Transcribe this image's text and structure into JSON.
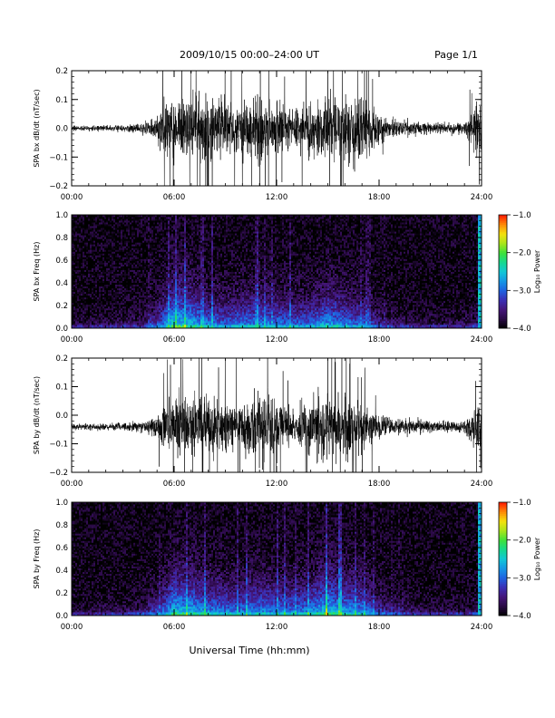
{
  "header": {
    "title": "2009/10/15   00:00–24:00 UT",
    "page": "Page 1/1"
  },
  "footer": {
    "xlabel": "Universal Time (hh:mm)"
  },
  "colors": {
    "trace": "#000000",
    "colormap": [
      "#000000",
      "#2a0a45",
      "#45167a",
      "#3b2fb5",
      "#1f62e0",
      "#1597e6",
      "#11c7d6",
      "#16d98e",
      "#3fe23a",
      "#a9e51b",
      "#f5e20e",
      "#ff8a08",
      "#ff1a00"
    ]
  },
  "chart_data": [
    {
      "type": "line",
      "id": "bx-timeseries",
      "ylabel": "SPA bx dB/dt (nT/sec)",
      "ylim": [
        -0.2,
        0.2
      ],
      "yticks": [
        "0.2",
        "0.1",
        "0.0",
        "−0.1",
        "−0.2"
      ],
      "ytick_values": [
        0.2,
        0.1,
        0.0,
        -0.1,
        -0.2
      ],
      "xlim": [
        0,
        24
      ],
      "xticks": [
        "00:00",
        "06:00",
        "12:00",
        "18:00",
        "24:00"
      ],
      "xtick_values": [
        0,
        6,
        12,
        18,
        24
      ],
      "baseline": 0.0,
      "activity_profile": {
        "hours": [
          0,
          1,
          2,
          3,
          4,
          4.5,
          5,
          5.5,
          6,
          7,
          8,
          9,
          10,
          11,
          12,
          13,
          14,
          15,
          16,
          17,
          18,
          19,
          20,
          21,
          22,
          23,
          23.8,
          24
        ],
        "amplitude": [
          0.015,
          0.015,
          0.018,
          0.02,
          0.028,
          0.04,
          0.09,
          0.18,
          0.2,
          0.18,
          0.19,
          0.17,
          0.16,
          0.2,
          0.19,
          0.12,
          0.17,
          0.2,
          0.19,
          0.18,
          0.09,
          0.05,
          0.04,
          0.035,
          0.03,
          0.035,
          0.16,
          0.2
        ]
      }
    },
    {
      "type": "heatmap",
      "id": "bx-spectrogram",
      "ylabel": "SPA bx Freq (Hz)",
      "ylim": [
        0.0,
        1.0
      ],
      "yticks": [
        "1.0",
        "0.8",
        "0.6",
        "0.4",
        "0.2",
        "0.0"
      ],
      "ytick_values": [
        1.0,
        0.8,
        0.6,
        0.4,
        0.2,
        0.0
      ],
      "xlim": [
        0,
        24
      ],
      "xticks": [
        "00:00",
        "06:00",
        "12:00",
        "18:00",
        "24:00"
      ],
      "xtick_values": [
        0,
        6,
        12,
        18,
        24
      ],
      "colorbar": {
        "label": "Log₁₀ Power",
        "range": [
          -4.0,
          -1.0
        ],
        "ticks": [
          "−1.0",
          "−2.0",
          "−3.0",
          "−4.0"
        ],
        "tick_values": [
          -1.0,
          -2.0,
          -3.0,
          -4.0
        ]
      },
      "power_profile": {
        "hours": [
          0,
          1,
          2,
          3,
          4,
          5,
          5.5,
          6,
          7,
          8,
          9,
          10,
          11,
          12,
          13,
          14,
          15,
          16,
          17,
          18,
          19,
          20,
          21,
          22,
          23,
          24
        ],
        "low_freq_peak_log10": [
          -3.6,
          -3.6,
          -3.5,
          -3.5,
          -3.4,
          -3.0,
          -2.6,
          -2.2,
          -2.4,
          -2.7,
          -2.8,
          -2.7,
          -2.6,
          -2.7,
          -2.8,
          -2.8,
          -2.5,
          -2.7,
          -2.8,
          -3.2,
          -3.4,
          -3.5,
          -3.5,
          -3.5,
          -3.5,
          -3.3
        ]
      }
    },
    {
      "type": "line",
      "id": "by-timeseries",
      "ylabel": "SPA by dB/dt (nT/sec)",
      "ylim": [
        -0.2,
        0.2
      ],
      "yticks": [
        "0.2",
        "0.1",
        "0.0",
        "−0.1",
        "−0.2"
      ],
      "ytick_values": [
        0.2,
        0.1,
        0.0,
        -0.1,
        -0.2
      ],
      "xlim": [
        0,
        24
      ],
      "xticks": [
        "00:00",
        "06:00",
        "12:00",
        "18:00",
        "24:00"
      ],
      "xtick_values": [
        0,
        6,
        12,
        18,
        24
      ],
      "baseline": -0.04,
      "activity_profile": {
        "hours": [
          0,
          1,
          2,
          3,
          4,
          4.5,
          5,
          5.5,
          6,
          7,
          8,
          9,
          10,
          11,
          12,
          13,
          14,
          15,
          16,
          17,
          18,
          19,
          20,
          21,
          22,
          23,
          23.8,
          24
        ],
        "amplitude": [
          0.018,
          0.018,
          0.02,
          0.022,
          0.03,
          0.04,
          0.07,
          0.14,
          0.2,
          0.17,
          0.18,
          0.17,
          0.15,
          0.2,
          0.17,
          0.1,
          0.16,
          0.2,
          0.18,
          0.15,
          0.07,
          0.045,
          0.04,
          0.035,
          0.03,
          0.035,
          0.16,
          0.2
        ]
      }
    },
    {
      "type": "heatmap",
      "id": "by-spectrogram",
      "ylabel": "SPA by Freq (Hz)",
      "ylim": [
        0.0,
        1.0
      ],
      "yticks": [
        "1.0",
        "0.8",
        "0.6",
        "0.4",
        "0.2",
        "0.0"
      ],
      "ytick_values": [
        1.0,
        0.8,
        0.6,
        0.4,
        0.2,
        0.0
      ],
      "xlim": [
        0,
        24
      ],
      "xticks": [
        "00:00",
        "06:00",
        "12:00",
        "18:00",
        "24:00"
      ],
      "xtick_values": [
        0,
        6,
        12,
        18,
        24
      ],
      "colorbar": {
        "label": "Log₁₀ Power",
        "range": [
          -4.0,
          -1.0
        ],
        "ticks": [
          "−1.0",
          "−2.0",
          "−3.0",
          "−4.0"
        ],
        "tick_values": [
          -1.0,
          -2.0,
          -3.0,
          -4.0
        ]
      },
      "power_profile": {
        "hours": [
          0,
          1,
          2,
          3,
          4,
          5,
          5.5,
          6,
          7,
          8,
          9,
          10,
          11,
          12,
          13,
          14,
          15,
          16,
          17,
          18,
          19,
          20,
          21,
          22,
          23,
          24
        ],
        "low_freq_peak_log10": [
          -3.6,
          -3.6,
          -3.5,
          -3.5,
          -3.4,
          -3.0,
          -2.7,
          -2.3,
          -2.4,
          -2.6,
          -2.7,
          -2.7,
          -2.6,
          -2.7,
          -2.7,
          -2.6,
          -2.3,
          -2.5,
          -2.6,
          -3.1,
          -3.3,
          -3.4,
          -3.5,
          -3.5,
          -3.5,
          -3.3
        ]
      }
    }
  ]
}
